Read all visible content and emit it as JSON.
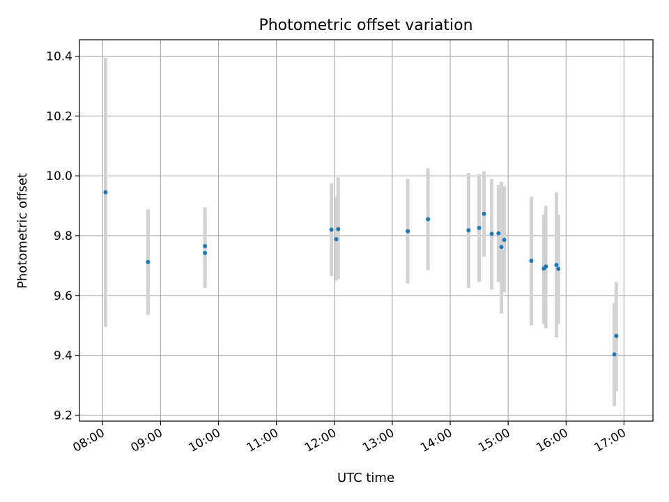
{
  "chart_data": {
    "type": "scatter",
    "title": "Photometric offset variation",
    "xlabel": "UTC time",
    "ylabel": "Photometric offset",
    "xlim": [
      "07:36",
      "17:30"
    ],
    "ylim": [
      9.18,
      10.455
    ],
    "grid": true,
    "legend": "none",
    "x_ticks": [
      "08:00",
      "09:00",
      "10:00",
      "11:00",
      "12:00",
      "13:00",
      "14:00",
      "15:00",
      "16:00",
      "17:00"
    ],
    "y_ticks": [
      9.2,
      9.4,
      9.6,
      9.8,
      10.0,
      10.2,
      10.4
    ],
    "colors": {
      "point": "#1f77b4",
      "errorbar": "#d3d3d3",
      "grid": "#b0b0b0"
    },
    "points": [
      {
        "time": "08:03",
        "y": 9.945,
        "lo": 9.495,
        "hi": 10.395
      },
      {
        "time": "08:47",
        "y": 9.712,
        "lo": 9.535,
        "hi": 9.888
      },
      {
        "time": "09:46",
        "y": 9.765,
        "lo": 9.635,
        "hi": 9.895
      },
      {
        "time": "09:46",
        "y": 9.742,
        "lo": 9.625,
        "hi": 9.86
      },
      {
        "time": "11:57",
        "y": 9.82,
        "lo": 9.665,
        "hi": 9.975
      },
      {
        "time": "12:02",
        "y": 9.788,
        "lo": 9.65,
        "hi": 9.93
      },
      {
        "time": "12:04",
        "y": 9.822,
        "lo": 9.655,
        "hi": 9.995
      },
      {
        "time": "13:16",
        "y": 9.815,
        "lo": 9.64,
        "hi": 9.99
      },
      {
        "time": "13:37",
        "y": 9.855,
        "lo": 9.685,
        "hi": 10.025
      },
      {
        "time": "14:19",
        "y": 9.818,
        "lo": 9.625,
        "hi": 10.01
      },
      {
        "time": "14:30",
        "y": 9.826,
        "lo": 9.645,
        "hi": 10.005
      },
      {
        "time": "14:35",
        "y": 9.873,
        "lo": 9.73,
        "hi": 10.015
      },
      {
        "time": "14:43",
        "y": 9.806,
        "lo": 9.62,
        "hi": 9.99
      },
      {
        "time": "14:50",
        "y": 9.808,
        "lo": 9.645,
        "hi": 9.97
      },
      {
        "time": "14:53",
        "y": 9.762,
        "lo": 9.54,
        "hi": 9.98
      },
      {
        "time": "14:56",
        "y": 9.786,
        "lo": 9.61,
        "hi": 9.965
      },
      {
        "time": "15:24",
        "y": 9.716,
        "lo": 9.5,
        "hi": 9.93
      },
      {
        "time": "15:37",
        "y": 9.69,
        "lo": 9.505,
        "hi": 9.87
      },
      {
        "time": "15:39",
        "y": 9.697,
        "lo": 9.49,
        "hi": 9.9
      },
      {
        "time": "15:50",
        "y": 9.702,
        "lo": 9.46,
        "hi": 9.945
      },
      {
        "time": "15:52",
        "y": 9.689,
        "lo": 9.505,
        "hi": 9.87
      },
      {
        "time": "16:50",
        "y": 9.403,
        "lo": 9.23,
        "hi": 9.575
      },
      {
        "time": "16:52",
        "y": 9.465,
        "lo": 9.28,
        "hi": 9.645
      }
    ]
  }
}
